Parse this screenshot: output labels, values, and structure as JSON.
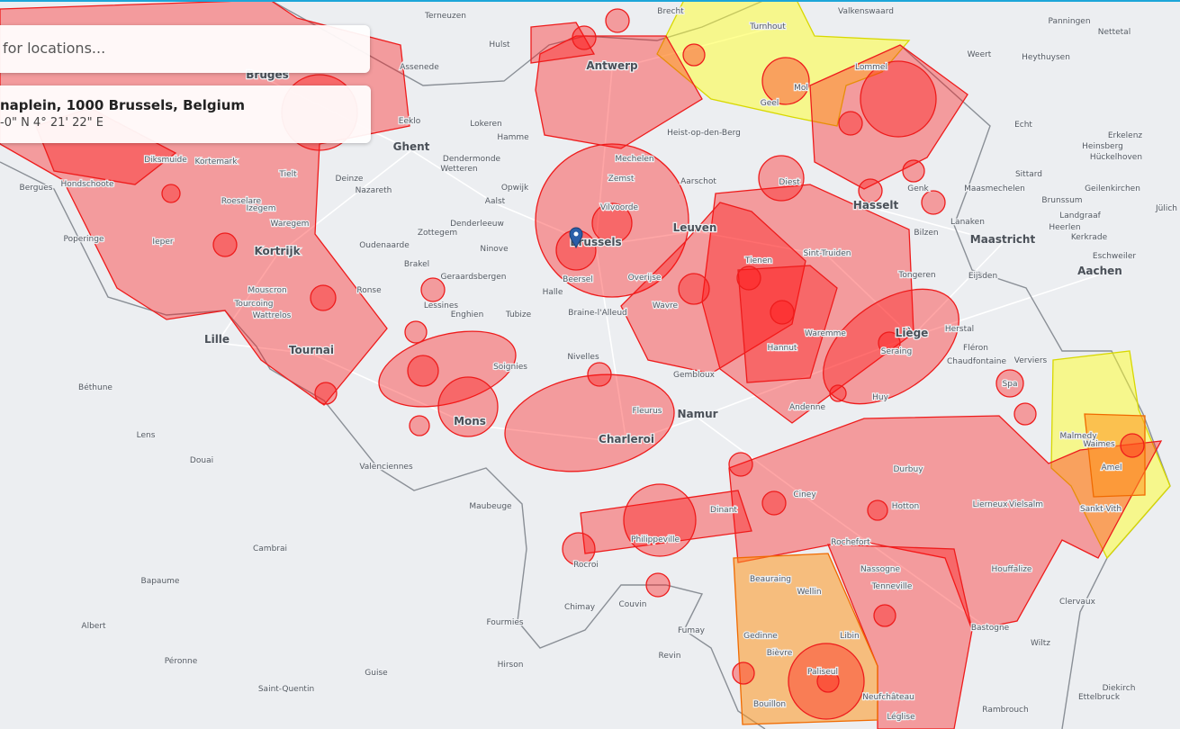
{
  "search": {
    "placeholder": "for locations..."
  },
  "location_card": {
    "address": "naplein, 1000 Brussels, Belgium",
    "coordinates": "-0\" N 4° 21' 22\" E"
  },
  "map": {
    "places": [
      "Terneuzen",
      "Brecht",
      "Valkenswaard",
      "Panningen",
      "Nettetal",
      "Turnhout",
      "Hulst",
      "Assenede",
      "Antwerp",
      "Weert",
      "Heythuysen",
      "Bruges",
      "Eeklo",
      "Lommel",
      "Ghent",
      "Mechelen",
      "Lokeren",
      "Hamme",
      "Dendermonde",
      "Wetteren",
      "Heist-op-den-Berg",
      "Mol",
      "Geel",
      "Diksmuide",
      "Kortemark",
      "Tielt",
      "Deinze",
      "Nazareth",
      "Aalst",
      "Opwijk",
      "Zemst",
      "Aarschot",
      "Diest",
      "Hasselt",
      "Genk",
      "Sittard",
      "Echt",
      "Heinsberg",
      "Erkelenz",
      "Hückelhoven",
      "Geilenkirchen",
      "Maasmechelen",
      "Brunssum",
      "Landgraaf",
      "Heerlen",
      "Kerkrade",
      "Maastricht",
      "Aachen",
      "Eschweiler",
      "Jülich",
      "Ieper",
      "Roeselare",
      "Izegem",
      "Waregem",
      "Kortrijk",
      "Oudenaarde",
      "Zottegem",
      "Ninove",
      "Denderleeuw",
      "Vilvoorde",
      "Brussels",
      "Leuven",
      "Tienen",
      "Sint-Truiden",
      "Bilzen",
      "Tongeren",
      "Lanaken",
      "Eijsden",
      "Halle",
      "Beersel",
      "Overijse",
      "Wavre",
      "Braine-l'Alleud",
      "Mouscron",
      "Tourcoing",
      "Wattrelos",
      "Lille",
      "Lessines",
      "Enghien",
      "Tubize",
      "Ronse",
      "Geraardsbergen",
      "Brakel",
      "Herstal",
      "Liège",
      "Seraing",
      "Fléron",
      "Verviers",
      "Chaudfontaine",
      "Waremme",
      "Hannut",
      "Huy",
      "Namur",
      "Charleroi",
      "Fleurus",
      "Mons",
      "Soignies",
      "Tournai",
      "Nivelles",
      "Gembloux",
      "Andenne",
      "Dinant",
      "Philippeville",
      "Ciney",
      "Spa",
      "Malmedy",
      "Chimay",
      "Couvin",
      "Rocroi",
      "Valenciennes",
      "Maubeuge",
      "Cambrai",
      "Douai",
      "Saint-Quentin",
      "Bapaume",
      "Albert",
      "Péronne",
      "Guise",
      "Fourmies",
      "Hirson",
      "Revin",
      "Fumay",
      "Bouillon",
      "Paliseul",
      "Libin",
      "Bièvre",
      "Gedinne",
      "Beauraing",
      "Wellin",
      "Rochefort",
      "Houffalize",
      "Bastogne",
      "Wiltz",
      "Clervaux",
      "Sankt-Vith",
      "Amel",
      "Waimes",
      "Vielsalm",
      "Lierneux",
      "Durbuy",
      "Hotton",
      "Tenneville",
      "Nassogne",
      "Neufchâteau",
      "Léglise",
      "Diekirch",
      "Ettelbruck",
      "Rambrouch",
      "Lens",
      "Béthune",
      "Bergues",
      "Poperinge",
      "Hondschoote"
    ]
  }
}
